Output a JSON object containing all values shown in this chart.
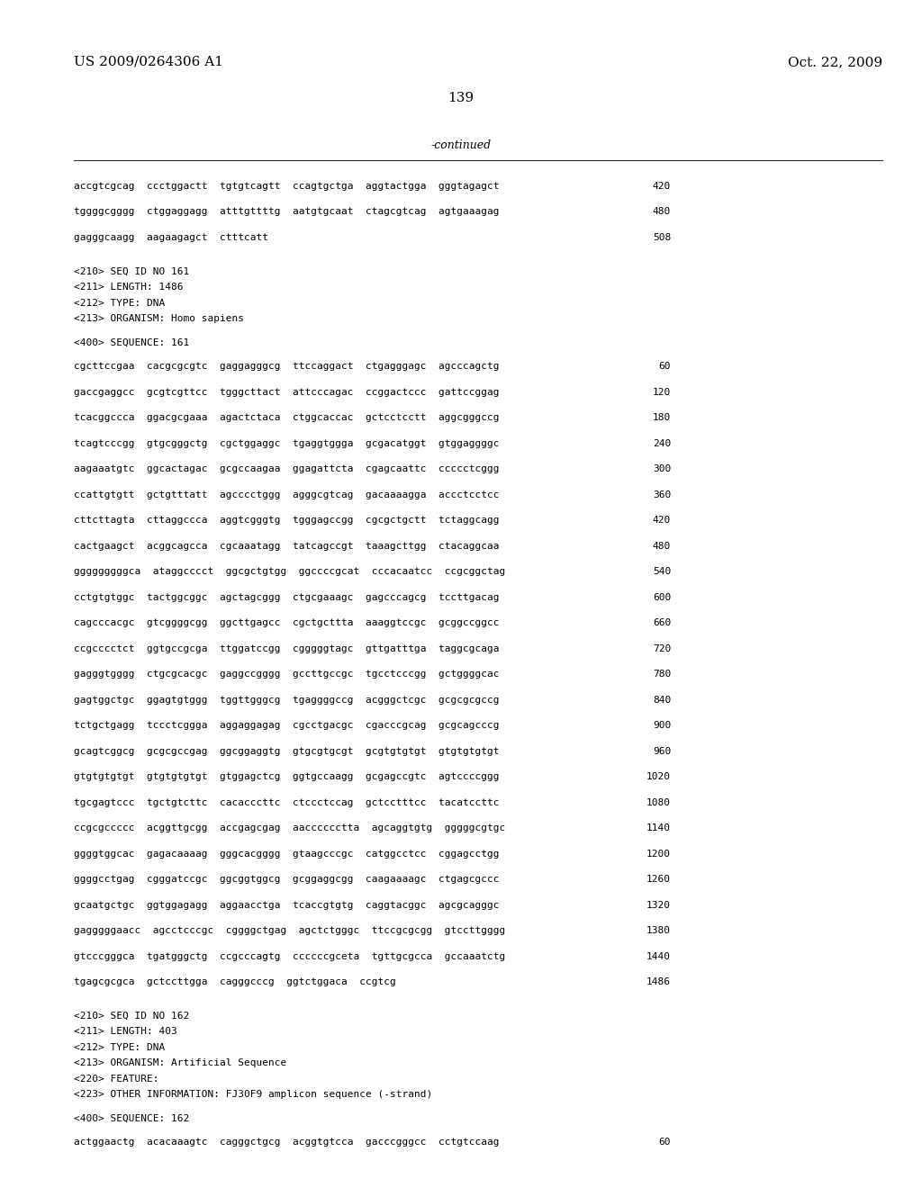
{
  "patent_number": "US 2009/0264306 A1",
  "date": "Oct. 22, 2009",
  "page_number": "139",
  "continued_label": "-continued",
  "background_color": "#ffffff",
  "text_color": "#000000",
  "font_size_header": 11,
  "font_size_body": 8.5,
  "lines": [
    {
      "text": "accgtcgcag  ccctggactt  tgtgtcagtt  ccagtgctga  aggtactgga  gggtagagct",
      "num": "420",
      "type": "seq"
    },
    {
      "text": "",
      "num": "",
      "type": "blank"
    },
    {
      "text": "tggggcgggg  ctggaggagg  atttgttttg  aatgtgcaat  ctagcgtcag  agtgaaagag",
      "num": "480",
      "type": "seq"
    },
    {
      "text": "",
      "num": "",
      "type": "blank"
    },
    {
      "text": "gagggcaagg  aagaagagct  ctttcatt",
      "num": "508",
      "type": "seq"
    },
    {
      "text": "",
      "num": "",
      "type": "blank"
    },
    {
      "text": "",
      "num": "",
      "type": "blank"
    },
    {
      "text": "<210> SEQ ID NO 161",
      "num": "",
      "type": "meta"
    },
    {
      "text": "<211> LENGTH: 1486",
      "num": "",
      "type": "meta"
    },
    {
      "text": "<212> TYPE: DNA",
      "num": "",
      "type": "meta"
    },
    {
      "text": "<213> ORGANISM: Homo sapiens",
      "num": "",
      "type": "meta"
    },
    {
      "text": "",
      "num": "",
      "type": "blank"
    },
    {
      "text": "<400> SEQUENCE: 161",
      "num": "",
      "type": "meta"
    },
    {
      "text": "",
      "num": "",
      "type": "blank"
    },
    {
      "text": "cgcttccgaa  cacgcgcgtc  gaggagggcg  ttccaggact  ctgagggagc  agcccagctg",
      "num": "60",
      "type": "seq"
    },
    {
      "text": "",
      "num": "",
      "type": "blank"
    },
    {
      "text": "gaccgaggcc  gcgtcgttcc  tgggcttact  attcccagac  ccggactccc  gattccggag",
      "num": "120",
      "type": "seq"
    },
    {
      "text": "",
      "num": "",
      "type": "blank"
    },
    {
      "text": "tcacggccca  ggacgcgaaa  agactctaca  ctggcaccac  gctcctcctt  aggcgggccg",
      "num": "180",
      "type": "seq"
    },
    {
      "text": "",
      "num": "",
      "type": "blank"
    },
    {
      "text": "tcagtcccgg  gtgcgggctg  cgctggaggc  tgaggtggga  gcgacatggt  gtggaggggc",
      "num": "240",
      "type": "seq"
    },
    {
      "text": "",
      "num": "",
      "type": "blank"
    },
    {
      "text": "aagaaatgtc  ggcactagac  gcgccaagaa  ggagattcta  cgagcaattc  ccccctcggg",
      "num": "300",
      "type": "seq"
    },
    {
      "text": "",
      "num": "",
      "type": "blank"
    },
    {
      "text": "ccattgtgtt  gctgtttatt  agcccctggg  agggcgtcag  gacaaaagga  accctcctcc",
      "num": "360",
      "type": "seq"
    },
    {
      "text": "",
      "num": "",
      "type": "blank"
    },
    {
      "text": "cttcttagta  cttaggccca  aggtcgggtg  tgggagccgg  cgcgctgctt  tctaggcagg",
      "num": "420",
      "type": "seq"
    },
    {
      "text": "",
      "num": "",
      "type": "blank"
    },
    {
      "text": "cactgaagct  acggcagcca  cgcaaatagg  tatcagccgt  taaagcttgg  ctacaggcaa",
      "num": "480",
      "type": "seq"
    },
    {
      "text": "",
      "num": "",
      "type": "blank"
    },
    {
      "text": "gggggggggca  ataggcccct  ggcgctgtgg  ggccccgcat  cccacaatcc  ccgcggctag",
      "num": "540",
      "type": "seq"
    },
    {
      "text": "",
      "num": "",
      "type": "blank"
    },
    {
      "text": "cctgtgtggc  tactggcggc  agctagcggg  ctgcgaaagc  gagcccagcg  tccttgacag",
      "num": "600",
      "type": "seq"
    },
    {
      "text": "",
      "num": "",
      "type": "blank"
    },
    {
      "text": "cagcccacgc  gtcggggcgg  ggcttgagcc  cgctgcttta  aaaggtccgc  gcggccggcc",
      "num": "660",
      "type": "seq"
    },
    {
      "text": "",
      "num": "",
      "type": "blank"
    },
    {
      "text": "ccgcccctct  ggtgccgcga  ttggatccgg  cgggggtagc  gttgatttga  taggcgcaga",
      "num": "720",
      "type": "seq"
    },
    {
      "text": "",
      "num": "",
      "type": "blank"
    },
    {
      "text": "gagggtgggg  ctgcgcacgc  gaggccgggg  gccttgccgc  tgcctcccgg  gctggggcac",
      "num": "780",
      "type": "seq"
    },
    {
      "text": "",
      "num": "",
      "type": "blank"
    },
    {
      "text": "gagtggctgc  ggagtgtggg  tggttgggcg  tgaggggccg  acgggctcgc  gcgcgcgccg",
      "num": "840",
      "type": "seq"
    },
    {
      "text": "",
      "num": "",
      "type": "blank"
    },
    {
      "text": "tctgctgagg  tccctcggga  aggaggagag  cgcctgacgc  cgacccgcag  gcgcagcccg",
      "num": "900",
      "type": "seq"
    },
    {
      "text": "",
      "num": "",
      "type": "blank"
    },
    {
      "text": "gcagtcggcg  gcgcgccgag  ggcggaggtg  gtgcgtgcgt  gcgtgtgtgt  gtgtgtgtgt",
      "num": "960",
      "type": "seq"
    },
    {
      "text": "",
      "num": "",
      "type": "blank"
    },
    {
      "text": "gtgtgtgtgt  gtgtgtgtgt  gtggagctcg  ggtgccaagg  gcgagccgtc  agtccccggg",
      "num": "1020",
      "type": "seq"
    },
    {
      "text": "",
      "num": "",
      "type": "blank"
    },
    {
      "text": "tgcgagtccc  tgctgtcttc  cacacccttc  ctccctccag  gctcctttcc  tacatccttc",
      "num": "1080",
      "type": "seq"
    },
    {
      "text": "",
      "num": "",
      "type": "blank"
    },
    {
      "text": "ccgcgccccc  acggttgcgg  accgagcgag  aacccccctta  agcaggtgtg  gggggcgtgc",
      "num": "1140",
      "type": "seq"
    },
    {
      "text": "",
      "num": "",
      "type": "blank"
    },
    {
      "text": "ggggtggcac  gagacaaaag  gggcacgggg  gtaagcccgc  catggcctcc  cggagcctgg",
      "num": "1200",
      "type": "seq"
    },
    {
      "text": "",
      "num": "",
      "type": "blank"
    },
    {
      "text": "ggggcctgag  cgggatccgc  ggcggtggcg  gcggaggcgg  caagaaaagc  ctgagcgccc",
      "num": "1260",
      "type": "seq"
    },
    {
      "text": "",
      "num": "",
      "type": "blank"
    },
    {
      "text": "gcaatgctgc  ggtggagagg  aggaacctga  tcaccgtgtg  caggtacggc  agcgcagggc",
      "num": "1320",
      "type": "seq"
    },
    {
      "text": "",
      "num": "",
      "type": "blank"
    },
    {
      "text": "gagggggaacc  agcctcccgc  cggggctgag  agctctgggc  ttccgcgcgg  gtccttgggg",
      "num": "1380",
      "type": "seq"
    },
    {
      "text": "",
      "num": "",
      "type": "blank"
    },
    {
      "text": "gtcccgggca  tgatgggctg  ccgcccagtg  ccccccgceta  tgttgcgcca  gccaaatctg",
      "num": "1440",
      "type": "seq"
    },
    {
      "text": "",
      "num": "",
      "type": "blank"
    },
    {
      "text": "tgagcgcgca  gctccttgga  cagggcccg  ggtctggaca  ccgtcg",
      "num": "1486",
      "type": "seq"
    },
    {
      "text": "",
      "num": "",
      "type": "blank"
    },
    {
      "text": "",
      "num": "",
      "type": "blank"
    },
    {
      "text": "<210> SEQ ID NO 162",
      "num": "",
      "type": "meta"
    },
    {
      "text": "<211> LENGTH: 403",
      "num": "",
      "type": "meta"
    },
    {
      "text": "<212> TYPE: DNA",
      "num": "",
      "type": "meta"
    },
    {
      "text": "<213> ORGANISM: Artificial Sequence",
      "num": "",
      "type": "meta"
    },
    {
      "text": "<220> FEATURE:",
      "num": "",
      "type": "meta"
    },
    {
      "text": "<223> OTHER INFORMATION: FJ30F9 amplicon sequence (-strand)",
      "num": "",
      "type": "meta"
    },
    {
      "text": "",
      "num": "",
      "type": "blank"
    },
    {
      "text": "<400> SEQUENCE: 162",
      "num": "",
      "type": "meta"
    },
    {
      "text": "",
      "num": "",
      "type": "blank"
    },
    {
      "text": "actggaactg  acacaaagtc  cagggctgcg  acggtgtcca  gacccgggcc  cctgtccaag",
      "num": "60",
      "type": "seq"
    }
  ]
}
